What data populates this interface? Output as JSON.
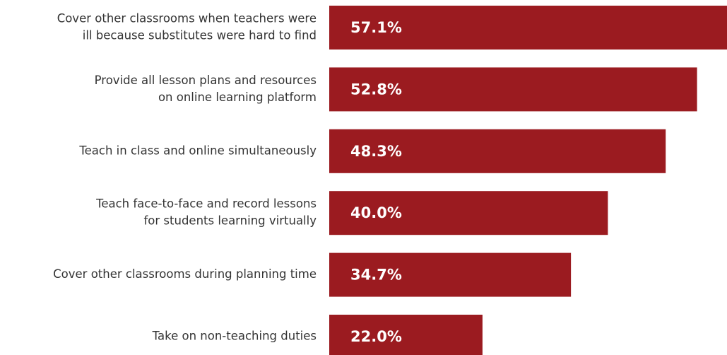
{
  "chart_data": {
    "type": "bar",
    "orientation": "horizontal",
    "categories": [
      [
        "Cover other classrooms when teachers were",
        "ill because substitutes were hard to find"
      ],
      [
        "Provide all lesson plans and resources",
        "on online learning platform"
      ],
      [
        "Teach in class and online simultaneously"
      ],
      [
        "Teach face-to-face and record lessons",
        "for students learning virtually"
      ],
      [
        "Cover other classrooms during planning time"
      ],
      [
        "Take on non-teaching duties"
      ]
    ],
    "values": [
      57.1,
      52.8,
      48.3,
      40.0,
      34.7,
      22.0
    ],
    "value_labels": [
      "57.1%",
      "52.8%",
      "48.3%",
      "40.0%",
      "34.7%",
      "22.0%"
    ],
    "color": "#9b1b20"
  }
}
